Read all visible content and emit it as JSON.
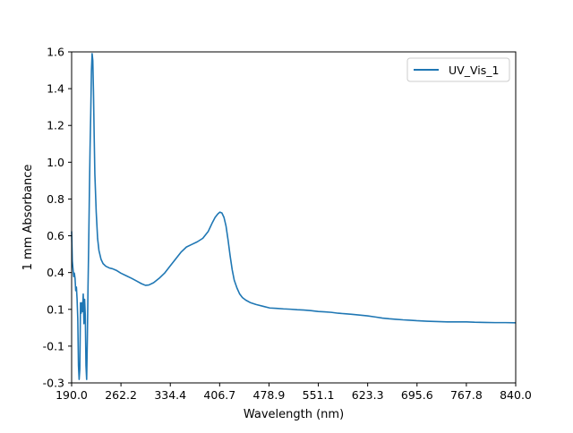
{
  "chart_data": {
    "type": "line",
    "title": "",
    "xlabel": "Wavelength (nm)",
    "ylabel": "1 mm Absorbance",
    "xlim": [
      190.0,
      840.0
    ],
    "ylim": [
      -0.3,
      1.6
    ],
    "xticks": [
      "190.0",
      "262.2",
      "334.4",
      "406.7",
      "478.9",
      "551.1",
      "623.3",
      "695.6",
      "767.8",
      "840.0"
    ],
    "yticks": [
      "-0.3",
      "-0.1",
      "0.1",
      "0.4",
      "0.6",
      "0.8",
      "1.0",
      "1.2",
      "1.4",
      "1.6"
    ],
    "grid": false,
    "legend_position": "top-right",
    "series": [
      {
        "name": "UV_Vis_1",
        "color": "#1f77b4",
        "x": [
          190,
          191,
          193,
          194,
          195,
          196,
          197,
          198,
          199,
          200,
          201,
          202,
          203,
          204,
          205,
          206,
          207,
          208,
          209,
          210,
          211,
          212,
          213,
          214,
          215,
          216,
          217,
          218,
          219,
          220,
          221,
          222,
          223,
          224,
          226,
          228,
          230,
          233,
          236,
          240,
          245,
          250,
          256,
          262,
          270,
          278,
          285,
          292,
          298,
          303,
          310,
          318,
          326,
          334,
          342,
          350,
          358,
          366,
          374,
          382,
          390,
          396,
          400,
          404,
          407,
          410,
          413,
          416,
          419,
          422,
          425,
          428,
          432,
          436,
          440,
          445,
          452,
          460,
          470,
          480,
          490,
          500,
          510,
          520,
          530,
          540,
          551,
          560,
          570,
          580,
          590,
          600,
          610,
          623,
          635,
          645,
          655,
          665,
          675,
          685,
          695,
          710,
          725,
          740,
          755,
          768,
          780,
          795,
          810,
          825,
          840
        ],
        "y": [
          0.57,
          0.4,
          0.31,
          0.33,
          0.3,
          0.23,
          0.25,
          0.18,
          0.07,
          -0.2,
          -0.28,
          -0.22,
          0.16,
          0.1,
          0.16,
          0.11,
          0.21,
          0.04,
          0.18,
          0.09,
          -0.2,
          -0.28,
          -0.05,
          0.25,
          0.5,
          0.79,
          1.05,
          1.25,
          1.49,
          1.59,
          1.55,
          1.37,
          1.12,
          0.9,
          0.68,
          0.53,
          0.46,
          0.41,
          0.385,
          0.37,
          0.36,
          0.355,
          0.345,
          0.33,
          0.315,
          0.3,
          0.285,
          0.27,
          0.26,
          0.262,
          0.275,
          0.3,
          0.33,
          0.37,
          0.41,
          0.45,
          0.48,
          0.495,
          0.51,
          0.53,
          0.57,
          0.62,
          0.65,
          0.67,
          0.68,
          0.675,
          0.65,
          0.6,
          0.52,
          0.43,
          0.35,
          0.29,
          0.245,
          0.21,
          0.19,
          0.175,
          0.16,
          0.15,
          0.14,
          0.13,
          0.128,
          0.125,
          0.123,
          0.12,
          0.118,
          0.115,
          0.11,
          0.108,
          0.105,
          0.1,
          0.097,
          0.094,
          0.09,
          0.085,
          0.078,
          0.072,
          0.068,
          0.065,
          0.062,
          0.06,
          0.057,
          0.054,
          0.052,
          0.05,
          0.05,
          0.05,
          0.048,
          0.047,
          0.046,
          0.046,
          0.045
        ]
      }
    ]
  }
}
